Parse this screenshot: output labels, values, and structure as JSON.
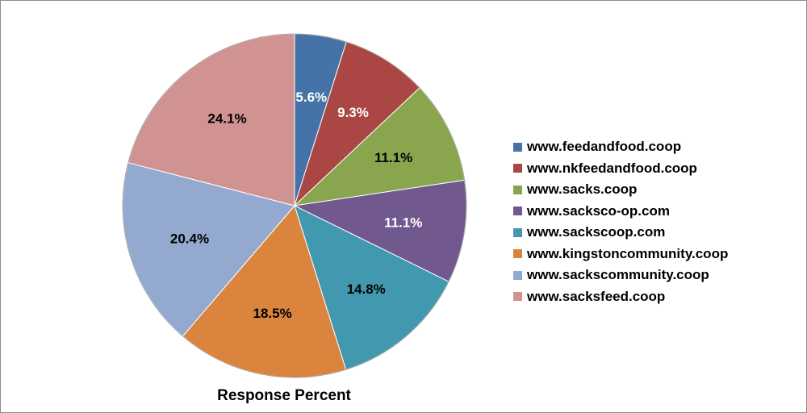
{
  "chart_data": {
    "type": "pie",
    "title": "Response Percent",
    "legend_position": "right",
    "slices": [
      {
        "label": "www.feedandfood.coop",
        "value": 5.6,
        "value_label": "5.6%",
        "color": "#4572a7",
        "label_color": "#ffffff"
      },
      {
        "label": "www.nkfeedandfood.coop",
        "value": 9.3,
        "value_label": "9.3%",
        "color": "#aa4643",
        "label_color": "#ffffff"
      },
      {
        "label": "www.sacks.coop",
        "value": 11.1,
        "value_label": "11.1%",
        "color": "#89a54e",
        "label_color": "#000000"
      },
      {
        "label": "www.sacksco-op.com",
        "value": 11.1,
        "value_label": "11.1%",
        "color": "#71588f",
        "label_color": "#ffffff"
      },
      {
        "label": "www.sackscoop.com",
        "value": 14.8,
        "value_label": "14.8%",
        "color": "#4198af",
        "label_color": "#000000"
      },
      {
        "label": "www.kingstoncommunity.coop",
        "value": 18.5,
        "value_label": "18.5%",
        "color": "#db843d",
        "label_color": "#000000"
      },
      {
        "label": "www.sackscommunity.coop",
        "value": 20.4,
        "value_label": "20.4%",
        "color": "#93a9cf",
        "label_color": "#000000"
      },
      {
        "label": "www.sacksfeed.coop",
        "value": 24.1,
        "value_label": "24.1%",
        "color": "#d19392",
        "label_color": "#000000"
      }
    ]
  }
}
